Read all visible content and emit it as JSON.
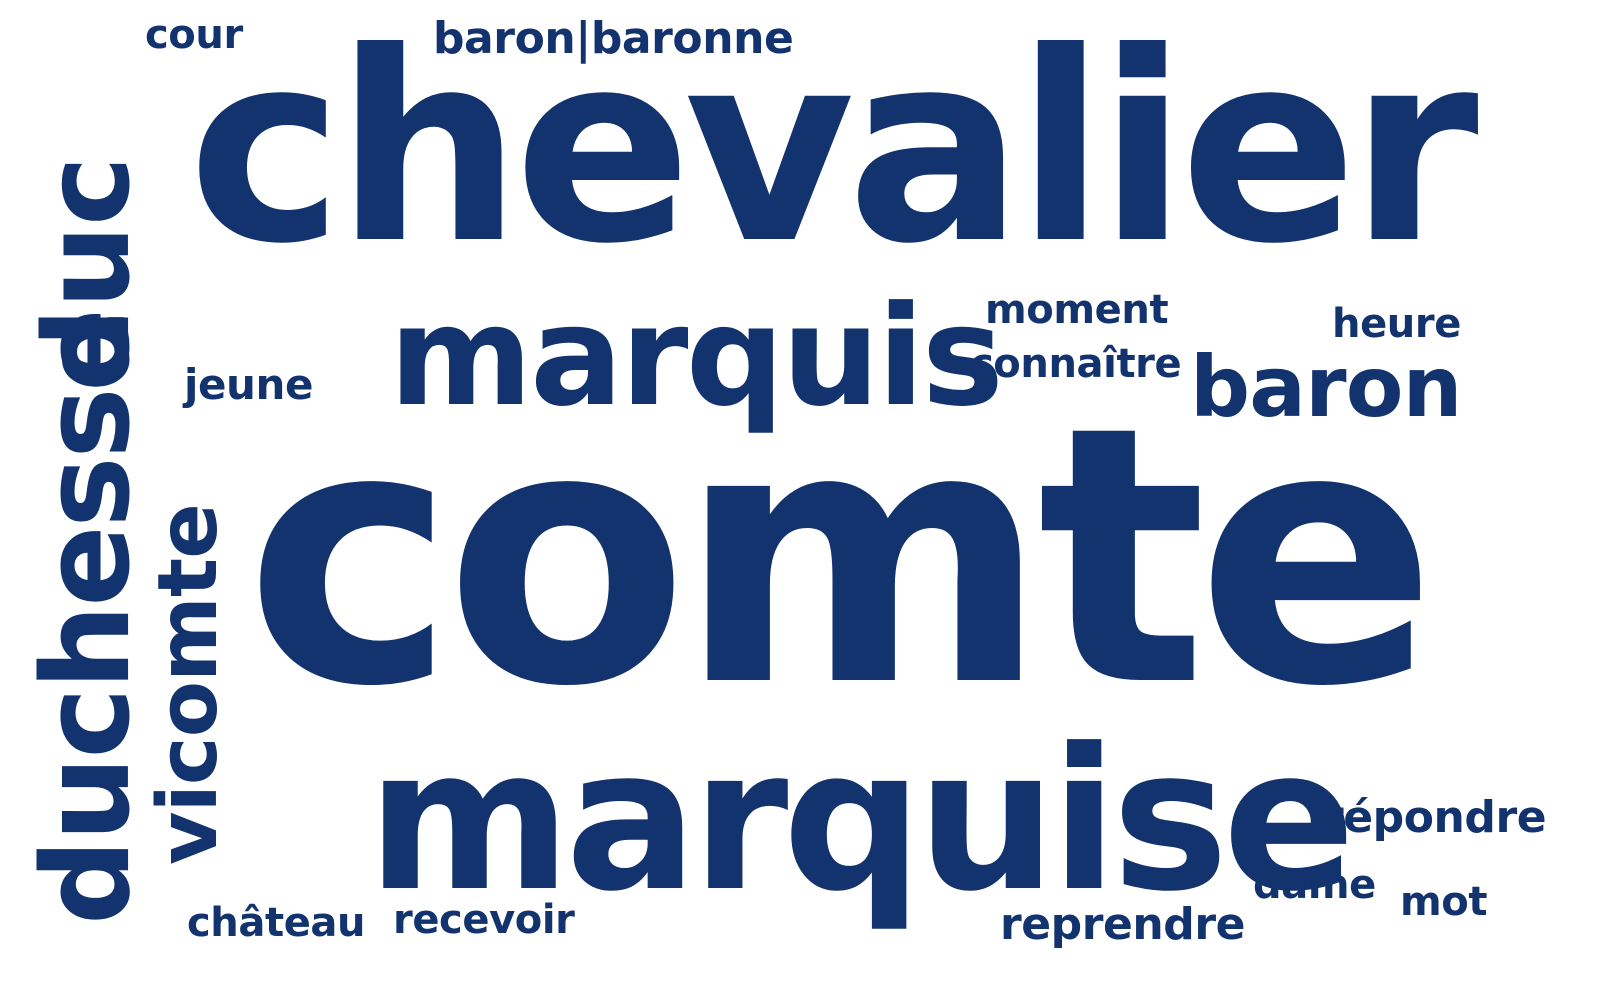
{
  "cloud": {
    "color": "#12336e",
    "background": "#ffffff",
    "words": {
      "comte": "comte",
      "chevalier": "chevalier",
      "marquise": "marquise",
      "marquis": "marquis",
      "duchesse": "duchesse",
      "vicomte": "vicomte",
      "duc": "duc",
      "baron": "baron",
      "baron_baronne": "baron|baronne",
      "cour": "cour",
      "jeune": "jeune",
      "moment": "moment",
      "connaitre": "connaître",
      "heure": "heure",
      "repondre": "répondre",
      "dame": "dame",
      "mot": "mot",
      "reprendre": "reprendre",
      "chateau": "château",
      "recevoir": "recevoir"
    }
  }
}
